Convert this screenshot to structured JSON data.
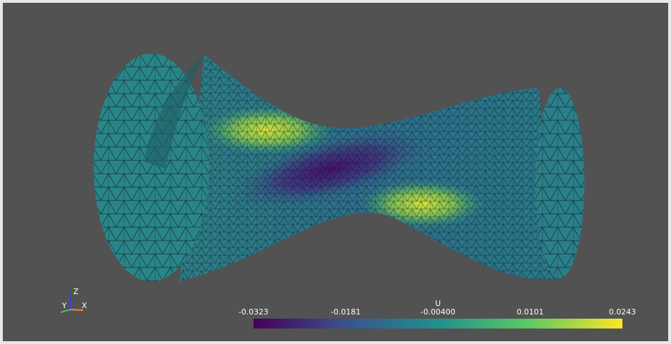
{
  "colorbar": {
    "title": "U",
    "ticks": [
      "-0.0323",
      "-0.0181",
      "-0.00400",
      "0.0101",
      "0.0243"
    ]
  },
  "axes": {
    "z": "Z",
    "y": "Y",
    "x": "X"
  }
}
